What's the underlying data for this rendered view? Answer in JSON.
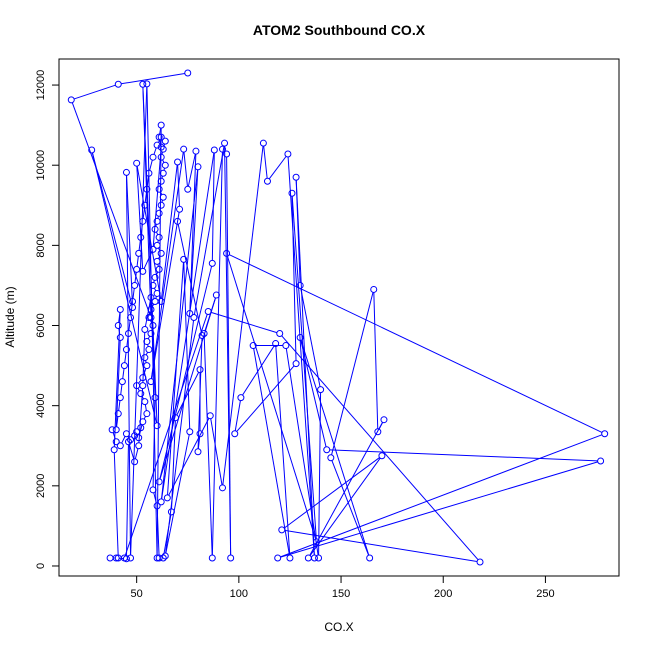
{
  "chart_data": {
    "type": "line",
    "title": "ATOM2 Southbound CO.X",
    "xlabel": "CO.X",
    "ylabel": "Altitude (m)",
    "xlim": [
      12,
      286
    ],
    "ylim": [
      -250,
      12650
    ],
    "xticks": [
      50,
      100,
      150,
      200,
      250
    ],
    "yticks": [
      0,
      2000,
      4000,
      6000,
      8000,
      10000,
      12000
    ],
    "series_color": "#0000ff",
    "grid": false,
    "legend": "none",
    "series": [
      {
        "points": [
          [
            75,
            12300
          ],
          [
            41,
            12020
          ],
          [
            18,
            11630
          ],
          [
            57,
            6200
          ],
          [
            53,
            12020
          ],
          [
            60,
            3500
          ],
          [
            28,
            10380
          ],
          [
            48,
            6450
          ],
          [
            45,
            9820
          ],
          [
            47,
            200
          ],
          [
            55,
            12030
          ],
          [
            60,
            200
          ],
          [
            62,
            11000
          ],
          [
            61,
            10700
          ],
          [
            62,
            10450
          ],
          [
            58,
            7900
          ],
          [
            53,
            7350
          ],
          [
            50,
            10050
          ],
          [
            62,
            6600
          ],
          [
            70,
            10080
          ],
          [
            71,
            8900
          ],
          [
            57,
            4600
          ],
          [
            73,
            10400
          ],
          [
            75,
            9400
          ],
          [
            79,
            10350
          ],
          [
            76,
            6300
          ],
          [
            80,
            9960
          ],
          [
            62,
            1600
          ],
          [
            88,
            10380
          ],
          [
            87,
            7550
          ],
          [
            61,
            2100
          ],
          [
            89,
            6760
          ],
          [
            83,
            5800
          ],
          [
            87,
            200
          ],
          [
            92,
            10400
          ],
          [
            94,
            10280
          ],
          [
            96,
            200
          ],
          [
            93,
            10550
          ],
          [
            78,
            6200
          ],
          [
            64,
            250
          ],
          [
            76,
            3350
          ],
          [
            73,
            7650
          ],
          [
            65,
            1700
          ],
          [
            86,
            3750
          ],
          [
            92,
            1950
          ],
          [
            112,
            10550
          ],
          [
            114,
            9600
          ],
          [
            124,
            10280
          ],
          [
            137,
            200
          ],
          [
            128,
            9700
          ],
          [
            130,
            7000
          ],
          [
            140,
            4400
          ],
          [
            139,
            200
          ],
          [
            123,
            5500
          ],
          [
            107,
            5500
          ],
          [
            125,
            200
          ],
          [
            118,
            5550
          ],
          [
            101,
            4200
          ],
          [
            98,
            3300
          ],
          [
            128,
            5050
          ],
          [
            126,
            9300
          ],
          [
            138,
            600
          ],
          [
            94,
            7800
          ],
          [
            279,
            3300
          ],
          [
            119,
            200
          ],
          [
            277,
            2620
          ],
          [
            143,
            2900
          ],
          [
            130,
            5700
          ],
          [
            164,
            200
          ],
          [
            145,
            2700
          ],
          [
            166,
            6900
          ],
          [
            168,
            3350
          ],
          [
            171,
            3650
          ],
          [
            134,
            200
          ],
          [
            170,
            2750
          ],
          [
            121,
            900
          ],
          [
            218,
            100
          ],
          [
            120,
            5800
          ],
          [
            85,
            6350
          ],
          [
            44,
            200
          ]
        ]
      },
      {
        "points": [
          [
            38,
            3400
          ],
          [
            40,
            3100
          ],
          [
            42,
            3000
          ],
          [
            45,
            3300
          ],
          [
            47,
            3150
          ],
          [
            49,
            3250
          ],
          [
            50,
            3350
          ],
          [
            52,
            3450
          ],
          [
            51,
            3200
          ],
          [
            53,
            3600
          ],
          [
            55,
            3800
          ],
          [
            54,
            4100
          ],
          [
            52,
            4300
          ],
          [
            50,
            4500
          ],
          [
            53,
            4700
          ],
          [
            55,
            5000
          ],
          [
            54,
            5200
          ],
          [
            56,
            5400
          ],
          [
            55,
            5600
          ],
          [
            57,
            5800
          ],
          [
            58,
            6000
          ],
          [
            56,
            6200
          ],
          [
            57,
            6400
          ],
          [
            59,
            6600
          ],
          [
            60,
            6800
          ],
          [
            58,
            7000
          ],
          [
            59,
            7200
          ],
          [
            61,
            7400
          ],
          [
            60,
            7600
          ],
          [
            62,
            7800
          ],
          [
            60,
            8000
          ],
          [
            61,
            8200
          ],
          [
            59,
            8400
          ],
          [
            60,
            8600
          ],
          [
            61,
            8800
          ],
          [
            62,
            9000
          ],
          [
            63,
            9200
          ],
          [
            61,
            9400
          ],
          [
            62,
            9600
          ],
          [
            63,
            9800
          ],
          [
            64,
            10000
          ],
          [
            62,
            10200
          ],
          [
            63,
            10400
          ],
          [
            64,
            10600
          ],
          [
            62,
            10700
          ],
          [
            60,
            10500
          ],
          [
            58,
            10200
          ],
          [
            56,
            9800
          ],
          [
            55,
            9400
          ],
          [
            54,
            9000
          ],
          [
            53,
            8600
          ],
          [
            52,
            8200
          ],
          [
            51,
            7800
          ],
          [
            50,
            7400
          ],
          [
            49,
            7000
          ],
          [
            48,
            6600
          ],
          [
            47,
            6200
          ],
          [
            46,
            5800
          ],
          [
            45,
            5400
          ],
          [
            44,
            5000
          ],
          [
            43,
            4600
          ],
          [
            42,
            4200
          ],
          [
            41,
            3800
          ],
          [
            40,
            3400
          ],
          [
            42,
            5700
          ],
          [
            41,
            6000
          ],
          [
            42,
            6400
          ],
          [
            39,
            2900
          ],
          [
            41,
            200
          ],
          [
            37,
            200
          ],
          [
            40,
            200
          ],
          [
            45,
            180
          ],
          [
            46,
            3100
          ],
          [
            49,
            2600
          ],
          [
            51,
            3000
          ],
          [
            53,
            4500
          ],
          [
            54,
            5900
          ],
          [
            57,
            6700
          ],
          [
            59,
            4200
          ],
          [
            58,
            1900
          ],
          [
            60,
            1500
          ],
          [
            61,
            200
          ],
          [
            63,
            200
          ],
          [
            67,
            1350
          ],
          [
            69,
            3700
          ],
          [
            81,
            4900
          ],
          [
            81,
            3300
          ],
          [
            80,
            2850
          ],
          [
            82,
            5750
          ],
          [
            70,
            8600
          ]
        ]
      }
    ]
  }
}
